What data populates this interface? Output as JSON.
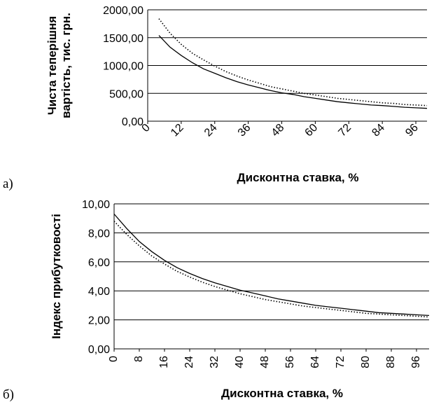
{
  "panel_labels": [
    "а)",
    "б)"
  ],
  "chart_data": [
    {
      "type": "line",
      "title": "",
      "xlabel": "Дисконтна ставка, %",
      "ylabel_lines": [
        "Чиста теперішня",
        "вартість, тис. грн."
      ],
      "ylim": [
        0,
        2000
      ],
      "yticks": [
        "0,00",
        "500,00",
        "1000,00",
        "1500,00",
        "2000,00"
      ],
      "ytick_values": [
        0,
        500,
        1000,
        1500,
        2000
      ],
      "xticks": [
        "0",
        "12",
        "24",
        "36",
        "48",
        "60",
        "72",
        "84",
        "96"
      ],
      "xtick_values": [
        0,
        12,
        24,
        36,
        48,
        60,
        72,
        84,
        96
      ],
      "x_range": [
        0,
        100
      ],
      "grid": "horizontal",
      "series": [
        {
          "style": "solid",
          "x": [
            4,
            8,
            12,
            16,
            20,
            24,
            28,
            32,
            36,
            40,
            44,
            48,
            52,
            56,
            60,
            64,
            68,
            72,
            76,
            80,
            84,
            88,
            92,
            96,
            100
          ],
          "values": [
            1540,
            1330,
            1180,
            1050,
            940,
            860,
            780,
            710,
            650,
            600,
            550,
            510,
            480,
            440,
            410,
            380,
            350,
            330,
            310,
            290,
            280,
            265,
            250,
            240,
            230
          ]
        },
        {
          "style": "dotted",
          "x": [
            4,
            8,
            12,
            16,
            20,
            24,
            28,
            32,
            36,
            40,
            44,
            48,
            52,
            56,
            60,
            64,
            68,
            72,
            76,
            80,
            84,
            88,
            92,
            96,
            100
          ],
          "values": [
            1840,
            1580,
            1380,
            1220,
            1100,
            990,
            890,
            810,
            740,
            680,
            620,
            580,
            540,
            500,
            470,
            440,
            410,
            390,
            370,
            350,
            330,
            320,
            300,
            290,
            280
          ]
        }
      ]
    },
    {
      "type": "line",
      "title": "",
      "xlabel": "Дисконтна ставка, %",
      "ylabel_lines": [
        "Індекс прибутковості"
      ],
      "ylim": [
        0,
        10
      ],
      "yticks": [
        "0,00",
        "2,00",
        "4,00",
        "6,00",
        "8,00",
        "10,00"
      ],
      "ytick_values": [
        0,
        2,
        4,
        6,
        8,
        10
      ],
      "xticks": [
        "0",
        "8",
        "16",
        "24",
        "32",
        "40",
        "48",
        "56",
        "64",
        "72",
        "80",
        "88",
        "96"
      ],
      "xtick_values": [
        0,
        8,
        16,
        24,
        32,
        40,
        48,
        56,
        64,
        72,
        80,
        88,
        96
      ],
      "x_range": [
        0,
        100
      ],
      "grid": "horizontal",
      "series": [
        {
          "style": "solid",
          "x": [
            0,
            4,
            8,
            12,
            16,
            20,
            24,
            28,
            32,
            36,
            40,
            44,
            48,
            52,
            56,
            60,
            64,
            68,
            72,
            76,
            80,
            84,
            88,
            92,
            96,
            100
          ],
          "values": [
            9.3,
            8.3,
            7.4,
            6.7,
            6.1,
            5.6,
            5.2,
            4.85,
            4.55,
            4.3,
            4.05,
            3.85,
            3.65,
            3.45,
            3.3,
            3.15,
            3.0,
            2.9,
            2.8,
            2.7,
            2.6,
            2.5,
            2.45,
            2.4,
            2.35,
            2.3
          ]
        },
        {
          "style": "dotted",
          "x": [
            0,
            4,
            8,
            12,
            16,
            20,
            24,
            28,
            32,
            36,
            40,
            44,
            48,
            52,
            56,
            60,
            64,
            68,
            72,
            76,
            80,
            84,
            88,
            92,
            96,
            100
          ],
          "values": [
            8.8,
            7.9,
            7.1,
            6.4,
            5.85,
            5.35,
            4.95,
            4.6,
            4.3,
            4.05,
            3.8,
            3.6,
            3.4,
            3.25,
            3.1,
            2.95,
            2.85,
            2.75,
            2.65,
            2.55,
            2.45,
            2.4,
            2.35,
            2.3,
            2.25,
            2.2
          ]
        }
      ]
    }
  ]
}
